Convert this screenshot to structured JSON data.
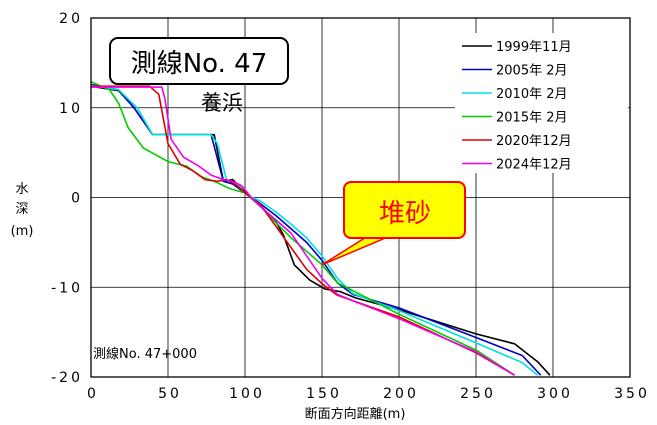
{
  "chart_data": {
    "type": "line",
    "xlabel": "断面方向距離(m)",
    "ylabel": [
      "水",
      "深",
      "(m)"
    ],
    "xlim": [
      0,
      350
    ],
    "ylim": [
      -20,
      20
    ],
    "x_ticks": [
      "0",
      "50",
      "100",
      "150",
      "200",
      "250",
      "300",
      "350"
    ],
    "y_ticks": [
      "20",
      "10",
      "0",
      "-10",
      "-20"
    ],
    "x_tick_values": [
      0,
      50,
      100,
      150,
      200,
      250,
      300,
      350
    ],
    "y_tick_values": [
      20,
      10,
      0,
      -10,
      -20
    ],
    "grid": true,
    "legend_position": "top-right",
    "series": [
      {
        "name": "1999年11月",
        "color": "#000000",
        "x": [
          0,
          18,
          28,
          40,
          80,
          86,
          92,
          100,
          110,
          120,
          125,
          132,
          142,
          152,
          162,
          172,
          200,
          250,
          275,
          290,
          298
        ],
        "y": [
          12.4,
          11.9,
          10.0,
          7.0,
          7.0,
          1.8,
          2.0,
          0.6,
          -0.9,
          -2.7,
          -4.2,
          -7.5,
          -9.2,
          -10.2,
          -10.5,
          -11.2,
          -12.5,
          -15.2,
          -16.3,
          -18.3,
          -19.8
        ]
      },
      {
        "name": "2005年 2月",
        "color": "#0000cc",
        "x": [
          0,
          18,
          28,
          40,
          78,
          86,
          92,
          100,
          110,
          120,
          130,
          140,
          150,
          160,
          170,
          200,
          250,
          280,
          292
        ],
        "y": [
          12.6,
          12.0,
          10.0,
          7.0,
          7.0,
          1.8,
          1.5,
          0.5,
          -0.7,
          -2.0,
          -3.5,
          -5.0,
          -7.0,
          -9.5,
          -10.8,
          -12.3,
          -15.6,
          -17.6,
          -19.8
        ]
      },
      {
        "name": "2010年 2月",
        "color": "#00e0e0",
        "x": [
          0,
          18,
          30,
          40,
          78,
          82,
          88,
          95,
          100,
          110,
          120,
          130,
          140,
          150,
          160,
          170,
          200,
          250,
          280,
          290
        ],
        "y": [
          12.5,
          12.0,
          10.0,
          7.0,
          7.0,
          6.0,
          2.0,
          1.5,
          0.4,
          -0.4,
          -1.6,
          -3.0,
          -4.5,
          -6.5,
          -9.0,
          -10.7,
          -12.6,
          -16.2,
          -18.4,
          -19.8
        ]
      },
      {
        "name": "2015年 2月",
        "color": "#00cc00",
        "x": [
          0,
          12,
          18,
          24,
          34,
          50,
          62,
          72,
          80,
          90,
          100,
          110,
          120,
          130,
          140,
          150,
          160,
          200,
          250,
          275
        ],
        "y": [
          12.9,
          12.0,
          10.5,
          7.8,
          5.5,
          4.0,
          3.5,
          2.3,
          1.8,
          1.0,
          0.5,
          -1.0,
          -2.8,
          -4.5,
          -6.0,
          -7.5,
          -9.5,
          -13.0,
          -17.0,
          -19.8
        ]
      },
      {
        "name": "2020年12月",
        "color": "#dd0000",
        "x": [
          0,
          38,
          44,
          50,
          58,
          66,
          74,
          82,
          88,
          95,
          100,
          110,
          120,
          130,
          140,
          150,
          160,
          200,
          250,
          275
        ],
        "y": [
          12.4,
          12.4,
          11.5,
          6.0,
          3.7,
          3.0,
          2.0,
          1.8,
          2.0,
          1.3,
          0.5,
          -0.8,
          -3.2,
          -5.6,
          -8.0,
          -9.6,
          -10.9,
          -13.3,
          -17.3,
          -19.8
        ]
      },
      {
        "name": "2024年12月",
        "color": "#ee00ee",
        "x": [
          0,
          46,
          48,
          52,
          60,
          70,
          78,
          86,
          92,
          98,
          104,
          110,
          120,
          130,
          140,
          150,
          160,
          170,
          200,
          250,
          275
        ],
        "y": [
          12.3,
          12.3,
          11.0,
          6.5,
          4.5,
          3.5,
          2.5,
          2.0,
          1.8,
          1.3,
          0.0,
          -1.0,
          -2.5,
          -4.0,
          -6.5,
          -9.0,
          -10.8,
          -11.5,
          -13.5,
          -17.2,
          -19.8
        ]
      }
    ],
    "annotations": {
      "transect_box": "測線No. 47",
      "nourishment": "養浜",
      "callout": "堆砂",
      "callout_target": {
        "x": 150,
        "y": -7.5
      },
      "footnote": "測線No. 47+000"
    }
  }
}
